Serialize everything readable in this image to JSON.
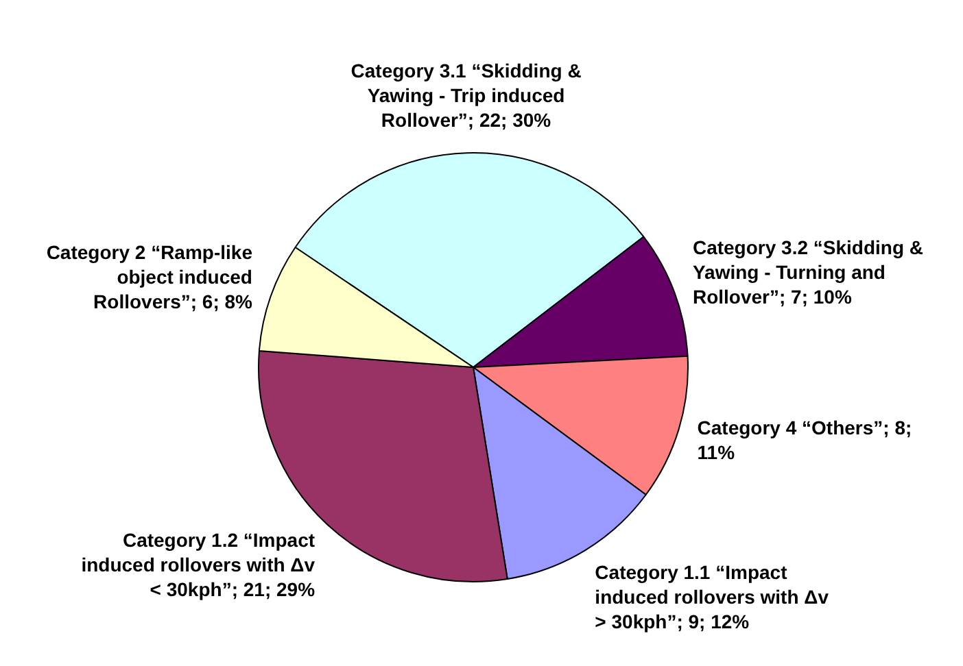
{
  "chart_data": {
    "type": "pie",
    "categories": [
      "Category 3.1 “Skidding & Yawing - Trip induced Rollover”",
      "Category 3.2 “Skidding & Yawing - Turning and Rollover”",
      "Category 4 “Others”",
      "Category 1.1 “Impact induced rollovers with Δv > 30kph”",
      "Category 1.2 “Impact induced rollovers with Δv < 30kph”",
      "Category 2 “Ramp-like object induced Rollovers”"
    ],
    "values": [
      22,
      7,
      8,
      9,
      21,
      6
    ],
    "value_labels": [
      "22; 30%",
      "7; 10%",
      "8; 11%",
      "9; 12%",
      "21; 29%",
      "6; 8%"
    ],
    "colors": [
      "#ccffff",
      "#660066",
      "#ff8080",
      "#9999ff",
      "#993366",
      "#ffffcc"
    ]
  }
}
